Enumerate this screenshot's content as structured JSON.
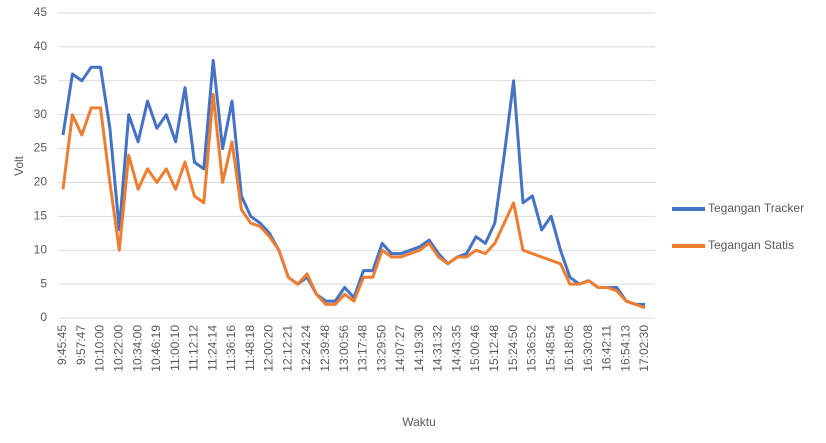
{
  "chart_data": {
    "type": "line",
    "xlabel": "Waktu",
    "ylabel": "Volt",
    "categories": [
      "9:45:45",
      null,
      "9:57:47",
      null,
      "10:10:00",
      null,
      "10:22:00",
      null,
      "10:34:00",
      null,
      "10:46:19",
      null,
      "11:00:10",
      null,
      "11:12:12",
      null,
      "11:24:14",
      null,
      "11:36:16",
      null,
      "11:48:18",
      null,
      "12:00:20",
      null,
      "12:12:21",
      null,
      "12:24:24",
      null,
      "12:39:48",
      null,
      "13:00:56",
      null,
      "13:17:48",
      null,
      "13:29:50",
      null,
      "14:07:27",
      null,
      "14:19:30",
      null,
      "14:31:32",
      null,
      "14:43:35",
      null,
      "15:00:46",
      null,
      "15:12:48",
      null,
      "15:24:50",
      null,
      "15:36:52",
      null,
      "15:48:54",
      null,
      "16:18:05",
      null,
      "16:30:08",
      null,
      "16:42:11",
      null,
      "16:54:13",
      null,
      "17:02:30"
    ],
    "series": [
      {
        "name": "Tegangan Tracker",
        "color": "#4472c4",
        "values": [
          27,
          36,
          35,
          37,
          37,
          28,
          13,
          30,
          26,
          32,
          28,
          30,
          26,
          34,
          23,
          22,
          38,
          25,
          32,
          18,
          15,
          14,
          12.5,
          10,
          6,
          5,
          6,
          3.5,
          2.5,
          2.5,
          4.5,
          3,
          7,
          7,
          11,
          9.5,
          9.5,
          10,
          10.5,
          11.5,
          9.5,
          8,
          9,
          9.5,
          12,
          11,
          14,
          24,
          35,
          17,
          18,
          13,
          15,
          10,
          6,
          5,
          5.5,
          4.5,
          4.5,
          4.5,
          2.5,
          2,
          2
        ]
      },
      {
        "name": "Tegangan Statis",
        "color": "#ed7d31",
        "values": [
          19,
          30,
          27,
          31,
          31,
          20,
          10,
          24,
          19,
          22,
          20,
          22,
          19,
          23,
          18,
          17,
          33,
          20,
          26,
          16,
          14,
          13.5,
          12,
          10,
          6,
          5,
          6.5,
          3.5,
          2,
          2,
          3.5,
          2.5,
          6,
          6,
          10,
          9,
          9,
          9.5,
          10,
          11,
          9,
          8,
          9,
          9,
          10,
          9.5,
          11,
          14,
          17,
          10,
          9.5,
          9,
          8.5,
          8,
          5,
          5,
          5.5,
          4.5,
          4.5,
          4,
          2.5,
          2,
          1.5
        ]
      }
    ],
    "ylim": [
      0,
      45
    ],
    "yticks": [
      0,
      5,
      10,
      15,
      20,
      25,
      30,
      35,
      40,
      45
    ],
    "grid": true,
    "legend": "right"
  }
}
